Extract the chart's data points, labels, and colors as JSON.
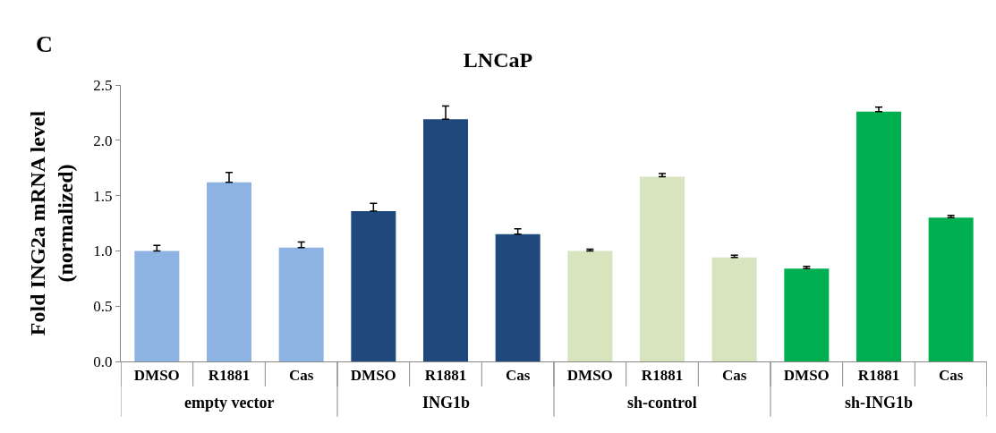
{
  "chart_data": {
    "type": "bar",
    "title": "LNCaP",
    "ylabel": "Fold ING2a mRNA level\n(normalized)",
    "categories": [
      "DMSO",
      "R1881",
      "Cas",
      "DMSO",
      "R1881",
      "Cas",
      "DMSO",
      "R1881",
      "Cas",
      "DMSO",
      "R1881",
      "Cas"
    ],
    "values": [
      1.0,
      1.62,
      1.03,
      1.36,
      2.19,
      1.15,
      1.0,
      1.67,
      0.94,
      0.84,
      2.26,
      1.3
    ],
    "errors": [
      [
        1.0,
        1.05
      ],
      [
        1.62,
        1.71
      ],
      [
        1.03,
        1.08
      ],
      [
        1.36,
        1.43
      ],
      [
        2.19,
        2.31
      ],
      [
        1.15,
        1.2
      ],
      [
        1.0,
        1.015
      ],
      [
        1.67,
        1.7
      ],
      [
        0.94,
        0.96
      ],
      [
        0.84,
        0.86
      ],
      [
        2.26,
        2.3
      ],
      [
        1.3,
        1.32
      ]
    ],
    "colors": [
      "#8db3e2",
      "#8db3e2",
      "#8db3e2",
      "#1f497d",
      "#1f497d",
      "#1f497d",
      "#d7e4bd",
      "#d7e4bd",
      "#d7e4bd",
      "#00b050",
      "#00b050",
      "#00b050"
    ],
    "annotations": [
      "C",
      "empty vector",
      "ING1b",
      "sh-control",
      "sh-ING1b"
    ],
    "ylim": [
      0,
      2.5
    ],
    "yticks": [
      {
        "value": 0,
        "label": "0.0"
      },
      {
        "value": 0.5,
        "label": "0.5"
      },
      {
        "value": 1,
        "label": "1.0"
      },
      {
        "value": 1.5,
        "label": "1.5"
      },
      {
        "value": 2,
        "label": "2.0"
      },
      {
        "value": 2.5,
        "label": "2.5"
      }
    ],
    "tick_labels": "xy"
  }
}
